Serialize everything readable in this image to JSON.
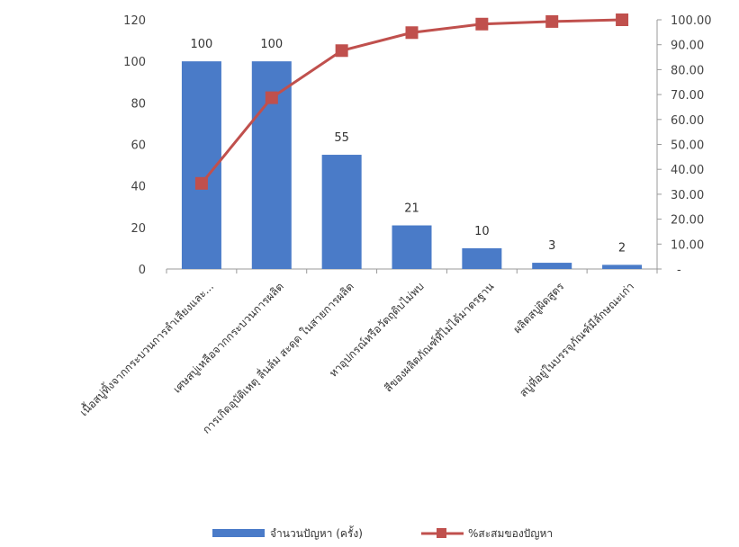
{
  "chart_data": {
    "type": "bar",
    "categories": [
      "เนื้อสบู่ทิ้งจากกระบวนการลำเลียงและ...",
      "เศษสบู่เหลือจากกระบวนการผลิต",
      "การเกิดอุบัติเหตุ ลื่นล้ม สะดุด ในสายการผลิต",
      "หาอุปกรณ์หรือวัตถุดิบไม่พบ",
      "สีของผลิตภัณฑ์ที่ไม่ได้มาตรฐาน",
      "ผลิตสบู่ผิดสูตร",
      "สบู่ที่อยู่ในบรรจุภัณฑ์มีลักษณะเก่า"
    ],
    "series": [
      {
        "name": "จำนวนปัญหา (ครั้ง)",
        "type": "bar",
        "axis": "left",
        "values": [
          100,
          100,
          55,
          21,
          10,
          3,
          2
        ],
        "color": "#4a7bc8"
      },
      {
        "name": "%สะสมของปัญหา",
        "type": "line",
        "axis": "right",
        "values": [
          34.36,
          68.73,
          87.63,
          94.85,
          98.28,
          99.31,
          100.0
        ],
        "color": "#c0504d"
      }
    ],
    "y_left": {
      "range": [
        0,
        120
      ],
      "ticks": [
        "0",
        "20",
        "40",
        "60",
        "80",
        "100",
        "120"
      ]
    },
    "y_right": {
      "range": [
        0,
        100
      ],
      "ticks": [
        "-",
        "10.00",
        "20.00",
        "30.00",
        "40.00",
        "50.00",
        "60.00",
        "70.00",
        "80.00",
        "90.00",
        "100.00"
      ]
    },
    "data_labels": [
      "100",
      "100",
      "55",
      "21",
      "10",
      "3",
      "2"
    ],
    "grid": false,
    "legend_position": "bottom"
  }
}
